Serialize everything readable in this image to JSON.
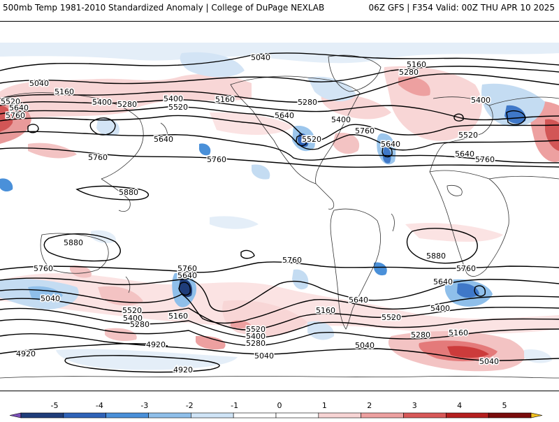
{
  "header": {
    "left": "500mb Temp 1981-2010 Standardized Anomaly | College of DuPage NEXLAB",
    "right": "06Z GFS | F354 Valid: 00Z THU APR 10 2025"
  },
  "contour_labels": [
    {
      "text": "5040",
      "pos": [
        373,
        81
      ]
    },
    {
      "text": "5280",
      "pos": [
        585,
        102
      ]
    },
    {
      "text": "5160",
      "pos": [
        596,
        91
      ]
    },
    {
      "text": "5040",
      "pos": [
        56,
        118
      ]
    },
    {
      "text": "5160",
      "pos": [
        92,
        130
      ]
    },
    {
      "text": "5520",
      "pos": [
        15,
        144
      ]
    },
    {
      "text": "5640",
      "pos": [
        27,
        153
      ]
    },
    {
      "text": "5760",
      "pos": [
        22,
        164
      ]
    },
    {
      "text": "5400",
      "pos": [
        146,
        145
      ]
    },
    {
      "text": "5280",
      "pos": [
        182,
        148
      ]
    },
    {
      "text": "5400",
      "pos": [
        248,
        140
      ]
    },
    {
      "text": "5520",
      "pos": [
        255,
        152
      ]
    },
    {
      "text": "5160",
      "pos": [
        322,
        141
      ]
    },
    {
      "text": "5280",
      "pos": [
        440,
        145
      ]
    },
    {
      "text": "5640",
      "pos": [
        407,
        164
      ]
    },
    {
      "text": "5400",
      "pos": [
        488,
        170
      ]
    },
    {
      "text": "5760",
      "pos": [
        522,
        186
      ]
    },
    {
      "text": "5520",
      "pos": [
        446,
        198
      ]
    },
    {
      "text": "5640",
      "pos": [
        559,
        205
      ]
    },
    {
      "text": "5400",
      "pos": [
        688,
        142
      ]
    },
    {
      "text": "5520",
      "pos": [
        670,
        192
      ]
    },
    {
      "text": "5640",
      "pos": [
        665,
        219
      ]
    },
    {
      "text": "5760",
      "pos": [
        694,
        227
      ]
    },
    {
      "text": "5640",
      "pos": [
        234,
        198
      ]
    },
    {
      "text": "5760",
      "pos": [
        140,
        224
      ]
    },
    {
      "text": "5760",
      "pos": [
        310,
        227
      ]
    },
    {
      "text": "5880",
      "pos": [
        184,
        274
      ]
    },
    {
      "text": "5880",
      "pos": [
        105,
        346
      ]
    },
    {
      "text": "5880",
      "pos": [
        624,
        365
      ]
    },
    {
      "text": "5760",
      "pos": [
        62,
        383
      ]
    },
    {
      "text": "5760",
      "pos": [
        268,
        383
      ]
    },
    {
      "text": "5640",
      "pos": [
        268,
        393
      ]
    },
    {
      "text": "5760",
      "pos": [
        418,
        371
      ]
    },
    {
      "text": "5760",
      "pos": [
        667,
        383
      ]
    },
    {
      "text": "5640",
      "pos": [
        634,
        402
      ]
    },
    {
      "text": "5040",
      "pos": [
        72,
        426
      ]
    },
    {
      "text": "5520",
      "pos": [
        189,
        443
      ]
    },
    {
      "text": "5400",
      "pos": [
        190,
        454
      ]
    },
    {
      "text": "5280",
      "pos": [
        200,
        463
      ]
    },
    {
      "text": "5160",
      "pos": [
        255,
        451
      ]
    },
    {
      "text": "5160",
      "pos": [
        466,
        443
      ]
    },
    {
      "text": "5640",
      "pos": [
        513,
        428
      ]
    },
    {
      "text": "5520",
      "pos": [
        560,
        453
      ]
    },
    {
      "text": "5400",
      "pos": [
        630,
        440
      ]
    },
    {
      "text": "5520",
      "pos": [
        366,
        470
      ]
    },
    {
      "text": "5400",
      "pos": [
        366,
        480
      ]
    },
    {
      "text": "5280",
      "pos": [
        366,
        490
      ]
    },
    {
      "text": "5280",
      "pos": [
        602,
        478
      ]
    },
    {
      "text": "5160",
      "pos": [
        656,
        475
      ]
    },
    {
      "text": "5040",
      "pos": [
        522,
        493
      ]
    },
    {
      "text": "4920",
      "pos": [
        223,
        492
      ]
    },
    {
      "text": "4920",
      "pos": [
        37,
        505
      ]
    },
    {
      "text": "5040",
      "pos": [
        378,
        508
      ]
    },
    {
      "text": "5040",
      "pos": [
        700,
        516
      ]
    },
    {
      "text": "4920",
      "pos": [
        262,
        528
      ]
    }
  ],
  "colorbar": {
    "ticks": [
      "-5",
      "-4",
      "-3",
      "-2",
      "-1",
      "0",
      "1",
      "2",
      "3",
      "4",
      "5"
    ],
    "colors": [
      "#7b4fb8",
      "#1f3d7a",
      "#2f63b8",
      "#4a90d9",
      "#8fbfea",
      "#cfe4f6",
      "#ffffff",
      "#ffffff",
      "#f7d4d4",
      "#eda0a0",
      "#d85858",
      "#b51f1f",
      "#7a0c0c",
      "#f0c020"
    ]
  }
}
